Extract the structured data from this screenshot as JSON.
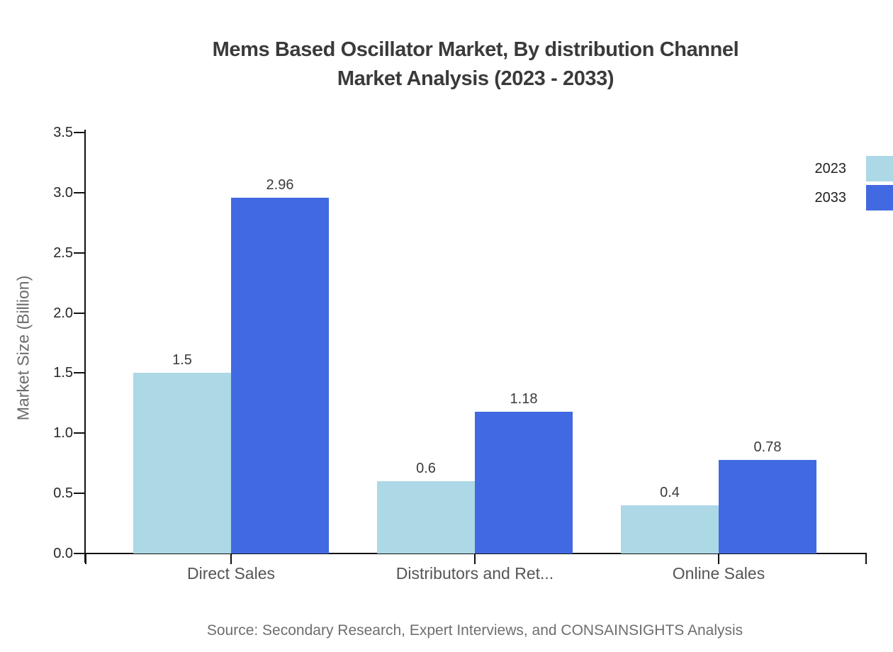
{
  "title": {
    "line1": "Mems Based Oscillator Market, By distribution Channel",
    "line2": "Market Analysis (2023 - 2033)"
  },
  "source": "Source: Secondary Research, Expert Interviews, and CONSAINSIGHTS Analysis",
  "colors": {
    "series_2023": "#ADD8E6",
    "series_2033": "#4169E1",
    "axis": "#111111",
    "title_text": "#3a3a3a",
    "muted_text": "#6b6b6b"
  },
  "chart_data": {
    "type": "bar",
    "title": "Mems Based Oscillator Market, By distribution Channel Market Analysis (2023 - 2033)",
    "categories": [
      "Direct Sales",
      "Distributors and Ret...",
      "Online Sales"
    ],
    "series": [
      {
        "name": "2023",
        "color": "#ADD8E6",
        "values": [
          1.5,
          0.6,
          0.4
        ]
      },
      {
        "name": "2033",
        "color": "#4169E1",
        "values": [
          2.96,
          1.18,
          0.78
        ]
      }
    ],
    "xlabel": "",
    "ylabel": "Market Size (Billion)",
    "ylim": [
      0,
      3.5
    ],
    "ytick_labels": [
      "0.0",
      "0.5",
      "1.0",
      "1.5",
      "2.0",
      "2.5",
      "3.0",
      "3.5"
    ],
    "grid": false,
    "legend_position": "top-right",
    "value_labels": true
  }
}
